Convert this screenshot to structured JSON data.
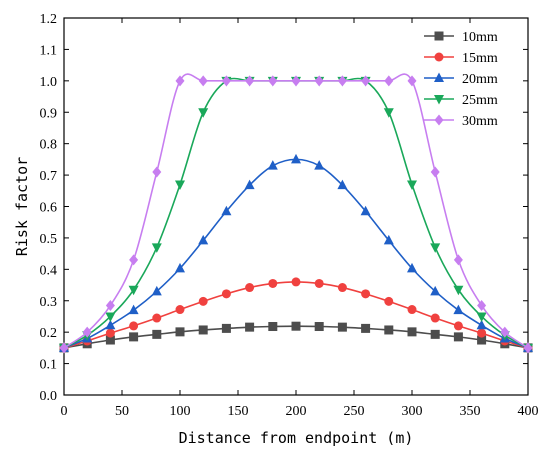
{
  "chart_data": {
    "type": "line",
    "xlabel": "Distance from endpoint (m)",
    "ylabel": "Risk factor",
    "xlim": [
      0,
      400
    ],
    "ylim": [
      0,
      1.2
    ],
    "xticks": [
      0,
      50,
      100,
      150,
      200,
      250,
      300,
      350,
      400
    ],
    "yticks": [
      0.0,
      0.1,
      0.2,
      0.3,
      0.4,
      0.5,
      0.6,
      0.7,
      0.8,
      0.9,
      1.0,
      1.1,
      1.2
    ],
    "grid": false,
    "legend": "top-right",
    "series": [
      {
        "name": "10mm",
        "color": "#4d4d4d",
        "marker": "square",
        "x": [
          0,
          20,
          40,
          60,
          80,
          100,
          120,
          140,
          160,
          180,
          200,
          220,
          240,
          260,
          280,
          300,
          320,
          340,
          360,
          380,
          400
        ],
        "y": [
          0.15,
          0.163,
          0.175,
          0.185,
          0.193,
          0.201,
          0.207,
          0.212,
          0.216,
          0.218,
          0.219,
          0.218,
          0.216,
          0.212,
          0.207,
          0.201,
          0.193,
          0.185,
          0.175,
          0.163,
          0.15
        ]
      },
      {
        "name": "15mm",
        "color": "#f0413f",
        "marker": "circle",
        "x": [
          0,
          20,
          40,
          60,
          80,
          100,
          120,
          140,
          160,
          180,
          200,
          220,
          240,
          260,
          280,
          300,
          320,
          340,
          360,
          380,
          400
        ],
        "y": [
          0.15,
          0.172,
          0.197,
          0.22,
          0.245,
          0.272,
          0.298,
          0.322,
          0.342,
          0.355,
          0.36,
          0.355,
          0.342,
          0.322,
          0.298,
          0.272,
          0.245,
          0.22,
          0.197,
          0.172,
          0.15
        ]
      },
      {
        "name": "20mm",
        "color": "#1f5fc7",
        "marker": "triangle-up",
        "x": [
          0,
          20,
          40,
          60,
          80,
          100,
          120,
          140,
          160,
          180,
          200,
          220,
          240,
          260,
          280,
          300,
          320,
          340,
          360,
          380,
          400
        ],
        "y": [
          0.15,
          0.18,
          0.222,
          0.27,
          0.33,
          0.403,
          0.492,
          0.585,
          0.668,
          0.73,
          0.75,
          0.73,
          0.668,
          0.585,
          0.492,
          0.403,
          0.33,
          0.27,
          0.222,
          0.18,
          0.15
        ]
      },
      {
        "name": "25mm",
        "color": "#1aa85a",
        "marker": "triangle-down",
        "x": [
          0,
          20,
          40,
          60,
          80,
          100,
          120,
          140,
          160,
          180,
          200,
          220,
          240,
          260,
          280,
          300,
          320,
          340,
          360,
          380,
          400
        ],
        "y": [
          0.15,
          0.19,
          0.25,
          0.335,
          0.47,
          0.67,
          0.9,
          1.0,
          1.0,
          1.0,
          1.0,
          1.0,
          1.0,
          1.0,
          0.9,
          0.67,
          0.47,
          0.335,
          0.25,
          0.19,
          0.15
        ]
      },
      {
        "name": "30mm",
        "color": "#c77ef0",
        "marker": "diamond",
        "x": [
          0,
          20,
          40,
          60,
          80,
          100,
          120,
          140,
          160,
          180,
          200,
          220,
          240,
          260,
          280,
          300,
          320,
          340,
          360,
          380,
          400
        ],
        "y": [
          0.15,
          0.2,
          0.285,
          0.43,
          0.71,
          1.0,
          1.0,
          1.0,
          1.0,
          1.0,
          1.0,
          1.0,
          1.0,
          1.0,
          1.0,
          1.0,
          0.71,
          0.43,
          0.285,
          0.2,
          0.15
        ]
      }
    ]
  }
}
